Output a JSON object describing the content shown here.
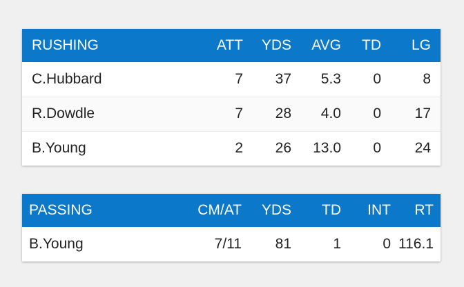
{
  "rushing": {
    "headers": [
      "RUSHING",
      "ATT",
      "YDS",
      "AVG",
      "TD",
      "LG"
    ],
    "rows": [
      [
        "C.Hubbard",
        "7",
        "37",
        "5.3",
        "0",
        "8"
      ],
      [
        "R.Dowdle",
        "7",
        "28",
        "4.0",
        "0",
        "17"
      ],
      [
        "B.Young",
        "2",
        "26",
        "13.0",
        "0",
        "24"
      ]
    ]
  },
  "passing": {
    "headers": [
      "PASSING",
      "CM/AT",
      "YDS",
      "TD",
      "INT",
      "RT"
    ],
    "rows": [
      [
        "B.Young",
        "7/11",
        "81",
        "1",
        "0",
        "116.1"
      ]
    ]
  },
  "colors": {
    "header_bg": "#0b78c9",
    "header_text": "#ffffff",
    "page_bg": "#f0f0f0"
  }
}
